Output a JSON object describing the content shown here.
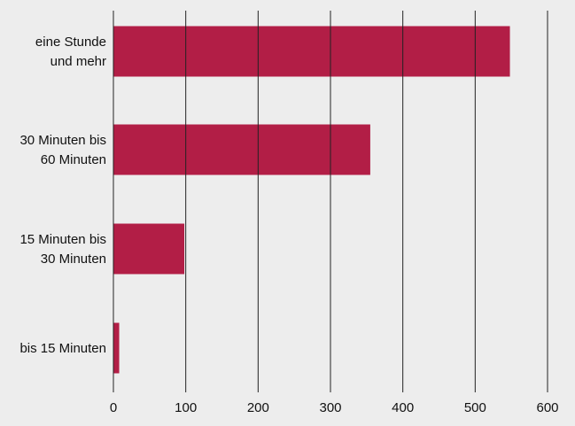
{
  "chart_data": {
    "type": "bar",
    "orientation": "horizontal",
    "categories": [
      [
        "eine Stunde",
        "und mehr"
      ],
      [
        "30 Minuten bis",
        "60 Minuten"
      ],
      [
        "15 Minuten bis",
        "30 Minuten"
      ],
      [
        "bis 15 Minuten"
      ]
    ],
    "values": [
      548,
      355,
      98,
      8
    ],
    "xlim": [
      0,
      600
    ],
    "xticks": [
      0,
      100,
      200,
      300,
      400,
      500,
      600
    ],
    "grid": true,
    "colors": {
      "bar": "#b21e46",
      "background": "#ededed",
      "grid": "#222222"
    }
  }
}
